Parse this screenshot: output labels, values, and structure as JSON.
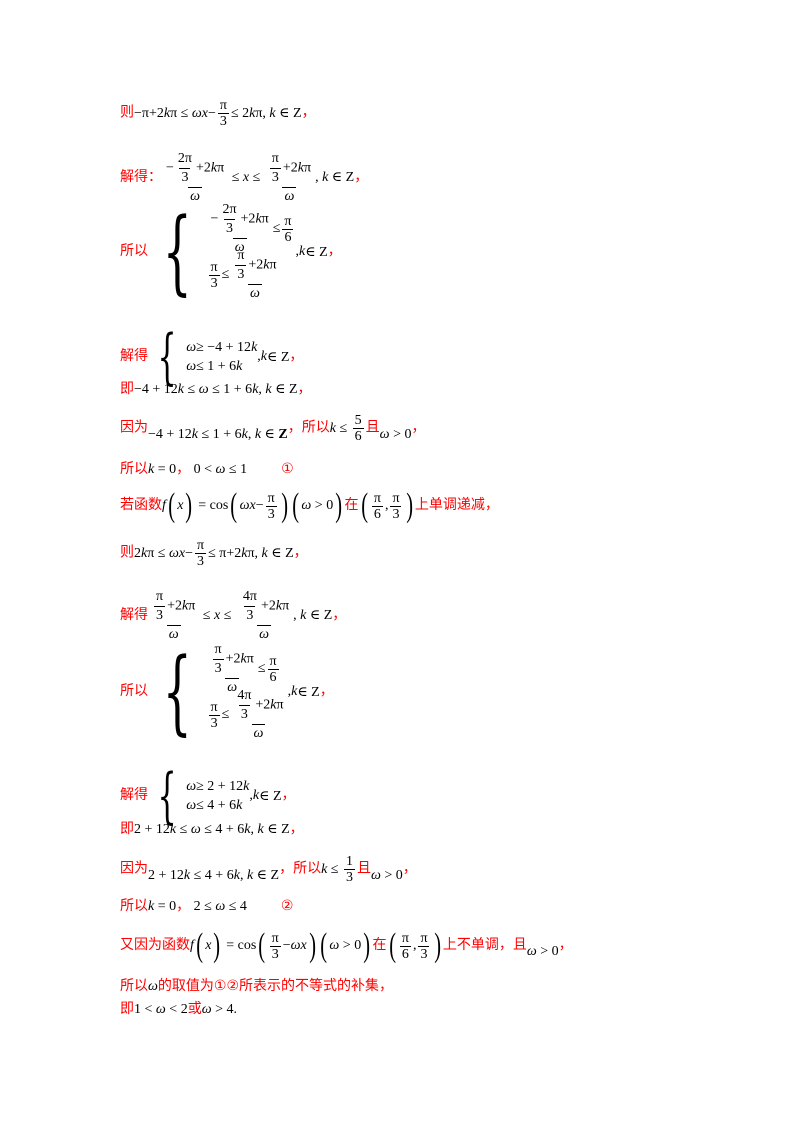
{
  "lines": {
    "l1_prefix": "则",
    "l2_prefix": "解得：",
    "l3_prefix": "所以",
    "l4_prefix": "解得",
    "l5_prefix": "即",
    "l6_prefix": "因为",
    "l6_mid": "，所以",
    "l6_and": "且",
    "l7_prefix": "所以",
    "l7_mark": "①",
    "l8_prefix": "若函数",
    "l8_in": "在",
    "l8_suffix": "上单调递减，",
    "l9_prefix": "则",
    "l10_prefix": "解得",
    "l11_prefix": "所以",
    "l12_prefix": "解得",
    "l13_prefix": "即",
    "l14_prefix": "因为",
    "l14_mid": "，所以",
    "l14_and": "且",
    "l15_prefix": "所以",
    "l15_mark": "②",
    "l16_prefix": "又因为函数",
    "l16_in": "在",
    "l16_mid": "上不单调，",
    "l16_and": "且",
    "l17_prefix": "所以",
    "l17_suffix": "的取值为①②所表示的不等式的补集，",
    "l18_prefix": "即",
    "l18_or": "或"
  }
}
